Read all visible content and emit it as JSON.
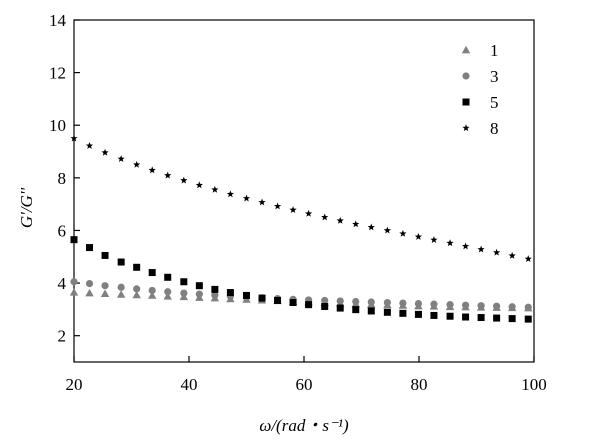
{
  "chart_data": {
    "type": "scatter",
    "xlabel": "ω/(rad・s⁻¹)",
    "ylabel": "G'/G''",
    "xlim": [
      20,
      100
    ],
    "ylim": [
      1,
      14
    ],
    "xticks": [
      20,
      40,
      60,
      80,
      100
    ],
    "yticks": [
      2,
      4,
      6,
      8,
      10,
      12,
      14
    ],
    "xtick_labels": [
      "20",
      "40",
      "60",
      "80",
      "100"
    ],
    "ytick_labels": [
      "2",
      "4",
      "6",
      "8",
      "10",
      "12",
      "14"
    ],
    "grid": false,
    "legend_position": "top-right",
    "series": [
      {
        "name": "1",
        "marker": "triangle",
        "color": "#808080",
        "x": [
          20,
          22.7,
          25.4,
          28.2,
          30.9,
          33.6,
          36.3,
          39.1,
          41.8,
          44.5,
          47.2,
          50,
          52.7,
          55.4,
          58.1,
          60.8,
          63.6,
          66.3,
          69,
          71.7,
          74.5,
          77.2,
          79.9,
          82.6,
          85.4,
          88.1,
          90.8,
          93.5,
          96.2,
          99
        ],
        "y": [
          3.65,
          3.62,
          3.6,
          3.57,
          3.55,
          3.53,
          3.5,
          3.48,
          3.45,
          3.43,
          3.4,
          3.38,
          3.35,
          3.33,
          3.3,
          3.28,
          3.25,
          3.23,
          3.21,
          3.19,
          3.17,
          3.15,
          3.13,
          3.12,
          3.1,
          3.09,
          3.08,
          3.07,
          3.06,
          3.05
        ]
      },
      {
        "name": "3",
        "marker": "circle",
        "color": "#808080",
        "x": [
          20,
          22.7,
          25.4,
          28.2,
          30.9,
          33.6,
          36.3,
          39.1,
          41.8,
          44.5,
          47.2,
          50,
          52.7,
          55.4,
          58.1,
          60.8,
          63.6,
          66.3,
          69,
          71.7,
          74.5,
          77.2,
          79.9,
          82.6,
          85.4,
          88.1,
          90.8,
          93.5,
          96.2,
          99
        ],
        "y": [
          4.05,
          3.98,
          3.9,
          3.84,
          3.78,
          3.72,
          3.67,
          3.62,
          3.58,
          3.54,
          3.5,
          3.47,
          3.44,
          3.41,
          3.38,
          3.36,
          3.34,
          3.32,
          3.3,
          3.28,
          3.26,
          3.24,
          3.22,
          3.2,
          3.18,
          3.16,
          3.14,
          3.12,
          3.1,
          3.08
        ]
      },
      {
        "name": "5",
        "marker": "square",
        "color": "#000000",
        "x": [
          20,
          22.7,
          25.4,
          28.2,
          30.9,
          33.6,
          36.3,
          39.1,
          41.8,
          44.5,
          47.2,
          50,
          52.7,
          55.4,
          58.1,
          60.8,
          63.6,
          66.3,
          69,
          71.7,
          74.5,
          77.2,
          79.9,
          82.6,
          85.4,
          88.1,
          90.8,
          93.5,
          96.2,
          99
        ],
        "y": [
          5.65,
          5.35,
          5.05,
          4.8,
          4.6,
          4.4,
          4.22,
          4.05,
          3.9,
          3.76,
          3.64,
          3.53,
          3.43,
          3.34,
          3.26,
          3.18,
          3.11,
          3.05,
          2.99,
          2.94,
          2.89,
          2.85,
          2.81,
          2.77,
          2.74,
          2.71,
          2.69,
          2.67,
          2.65,
          2.63
        ]
      },
      {
        "name": "8",
        "marker": "star",
        "color": "#000000",
        "x": [
          20,
          22.7,
          25.4,
          28.2,
          30.9,
          33.6,
          36.3,
          39.1,
          41.8,
          44.5,
          47.2,
          50,
          52.7,
          55.4,
          58.1,
          60.8,
          63.6,
          66.3,
          69,
          71.7,
          74.5,
          77.2,
          79.9,
          82.6,
          85.4,
          88.1,
          90.8,
          93.5,
          96.2,
          99
        ],
        "y": [
          9.5,
          9.22,
          8.96,
          8.72,
          8.5,
          8.29,
          8.09,
          7.9,
          7.72,
          7.55,
          7.38,
          7.22,
          7.07,
          6.92,
          6.78,
          6.64,
          6.5,
          6.37,
          6.24,
          6.12,
          6.0,
          5.88,
          5.76,
          5.64,
          5.52,
          5.4,
          5.28,
          5.16,
          5.04,
          4.92
        ]
      }
    ]
  }
}
